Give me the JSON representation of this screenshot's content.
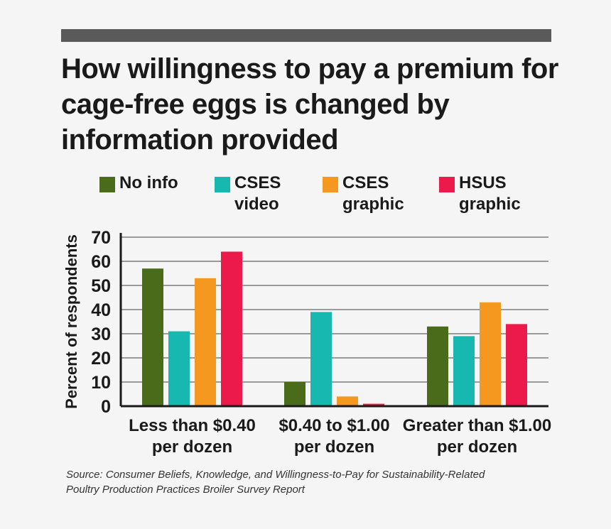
{
  "title_lines": [
    "How willingness to pay a premium for",
    "cage-free eggs is changed by",
    "information provided"
  ],
  "source_lines": [
    "Source: Consumer Beliefs, Knowledge, and Willingness-to-Pay for Sustainability-Related",
    "Poultry Production Practices Broiler Survey Report"
  ],
  "legend": [
    {
      "lines": [
        "No info"
      ],
      "color": "#4a6b1a"
    },
    {
      "lines": [
        "CSES",
        "video"
      ],
      "color": "#16b8b0"
    },
    {
      "lines": [
        "CSES",
        "graphic"
      ],
      "color": "#f5981f"
    },
    {
      "lines": [
        "HSUS",
        "graphic"
      ],
      "color": "#ec1a4b"
    }
  ],
  "chart_data": {
    "type": "bar",
    "title": "How willingness to pay a premium for cage-free eggs is changed by information provided",
    "ylabel": "Percent of respondents",
    "xlabel": "",
    "ylim": [
      0,
      70
    ],
    "yticks": [
      0,
      10,
      20,
      30,
      40,
      50,
      60,
      70
    ],
    "grid": true,
    "legend_position": "top",
    "categories": [
      [
        "Less than $0.40",
        "per dozen"
      ],
      [
        "$0.40 to $1.00",
        "per dozen"
      ],
      [
        "Greater than $1.00",
        "per dozen"
      ]
    ],
    "series": [
      {
        "name": "No info",
        "color": "#4a6b1a",
        "values": [
          57,
          10,
          33
        ]
      },
      {
        "name": "CSES video",
        "color": "#16b8b0",
        "values": [
          31,
          39,
          29
        ]
      },
      {
        "name": "CSES graphic",
        "color": "#f5981f",
        "values": [
          53,
          4,
          43
        ]
      },
      {
        "name": "HSUS graphic",
        "color": "#ec1a4b",
        "values": [
          64,
          1,
          34
        ]
      }
    ]
  }
}
